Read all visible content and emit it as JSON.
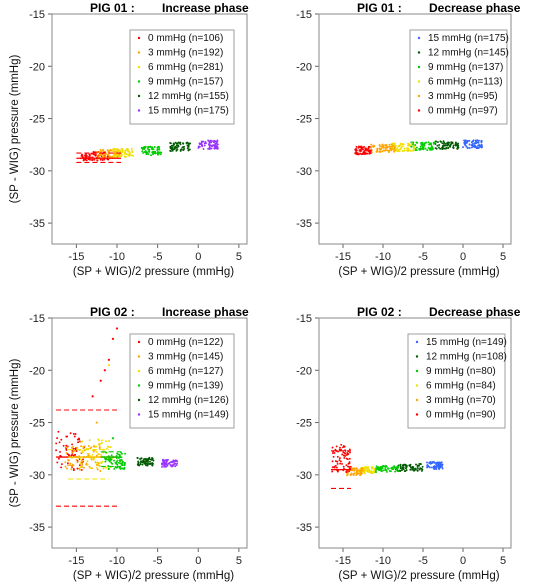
{
  "chart_data": [
    {
      "type": "scatter",
      "pig_label": "PIG 01 :",
      "title": "Increase phase",
      "xlabel": "(SP + WIG)/2 pressure (mmHg)",
      "ylabel": "(SP - WIG) pressure (mmHg)",
      "xlim": [
        -18,
        6
      ],
      "ylim": [
        -37,
        -15
      ],
      "xticks": [
        -15,
        -10,
        -5,
        0,
        5
      ],
      "yticks": [
        -15,
        -20,
        -25,
        -30,
        -35
      ],
      "grid": false,
      "legend_position": "top-right",
      "series": [
        {
          "name": "0 mmHg (n=106)",
          "color": "#ff0000",
          "x_range": [
            -14.5,
            -11
          ],
          "y_range": [
            -29.2,
            -28.0
          ]
        },
        {
          "name": "3 mmHg (n=192)",
          "color": "#ffa500",
          "x_range": [
            -12.5,
            -9.5
          ],
          "y_range": [
            -29.0,
            -27.8
          ]
        },
        {
          "name": "6 mmHg (n=281)",
          "color": "#f0e000",
          "x_range": [
            -10.5,
            -8
          ],
          "y_range": [
            -28.9,
            -27.7
          ]
        },
        {
          "name": "9 mmHg (n=157)",
          "color": "#00cc00",
          "x_range": [
            -7,
            -4.5
          ],
          "y_range": [
            -28.7,
            -27.5
          ]
        },
        {
          "name": "12 mmHg (n=155)",
          "color": "#005a00",
          "x_range": [
            -3.5,
            -1
          ],
          "y_range": [
            -28.3,
            -27.1
          ]
        },
        {
          "name": "15 mmHg (n=175)",
          "color": "#9933ff",
          "x_range": [
            0,
            2.5
          ],
          "y_range": [
            -28.1,
            -26.9
          ]
        }
      ],
      "reference_lines": {
        "color": "#ff0000",
        "x_range": [
          -15,
          -9.5
        ],
        "mean": -28.8,
        "limits": [
          -29.2,
          -28.3
        ]
      }
    },
    {
      "type": "scatter",
      "pig_label": "PIG 01 :",
      "title": "Decrease phase",
      "xlabel": "(SP + WIG)/2 pressure (mmHg)",
      "ylabel": "",
      "xlim": [
        -18,
        6
      ],
      "ylim": [
        -37,
        -15
      ],
      "xticks": [
        -15,
        -10,
        -5,
        0,
        5
      ],
      "yticks": [
        -15,
        -20,
        -25,
        -30,
        -35
      ],
      "grid": false,
      "legend_position": "top-right",
      "series": [
        {
          "name": "15 mmHg (n=175)",
          "color": "#3366ff",
          "x_range": [
            0,
            2.5
          ],
          "y_range": [
            -28.0,
            -26.9
          ]
        },
        {
          "name": "12 mmHg (n=145)",
          "color": "#005a00",
          "x_range": [
            -3.5,
            -0.5
          ],
          "y_range": [
            -28.1,
            -27.0
          ]
        },
        {
          "name": "9 mmHg (n=137)",
          "color": "#00cc00",
          "x_range": [
            -6.5,
            -3.5
          ],
          "y_range": [
            -28.2,
            -27.1
          ]
        },
        {
          "name": "6 mmHg (n=113)",
          "color": "#f0e000",
          "x_range": [
            -9,
            -6
          ],
          "y_range": [
            -28.3,
            -27.2
          ]
        },
        {
          "name": "3 mmHg (n=95)",
          "color": "#ffa500",
          "x_range": [
            -11.5,
            -8.5
          ],
          "y_range": [
            -28.4,
            -27.3
          ]
        },
        {
          "name": "0 mmHg (n=97)",
          "color": "#ff0000",
          "x_range": [
            -13.5,
            -11.5
          ],
          "y_range": [
            -28.6,
            -27.5
          ]
        }
      ]
    },
    {
      "type": "scatter",
      "pig_label": "PIG 02 :",
      "title": "Increase phase",
      "xlabel": "(SP + WIG)/2 pressure (mmHg)",
      "ylabel": "(SP - WIG) pressure (mmHg)",
      "xlim": [
        -18,
        6
      ],
      "ylim": [
        -37,
        -15
      ],
      "xticks": [
        -15,
        -10,
        -5,
        0,
        5
      ],
      "yticks": [
        -15,
        -20,
        -25,
        -30,
        -35
      ],
      "grid": false,
      "legend_position": "top-right",
      "series": [
        {
          "name": "0 mmHg (n=122)",
          "color": "#ff0000",
          "x_range": [
            -17.5,
            -14
          ],
          "y_range": [
            -30.5,
            -25.0
          ]
        },
        {
          "name": "3 mmHg (n=145)",
          "color": "#ffa500",
          "x_range": [
            -16.5,
            -12
          ],
          "y_range": [
            -30.2,
            -26.5
          ]
        },
        {
          "name": "6 mmHg (n=127)",
          "color": "#f0e000",
          "x_range": [
            -14.5,
            -10.5
          ],
          "y_range": [
            -30.0,
            -26.0
          ]
        },
        {
          "name": "9 mmHg (n=139)",
          "color": "#00cc00",
          "x_range": [
            -11.5,
            -9
          ],
          "y_range": [
            -29.8,
            -27.5
          ]
        },
        {
          "name": "12 mmHg (n=126)",
          "color": "#005a00",
          "x_range": [
            -7.5,
            -5.5
          ],
          "y_range": [
            -29.3,
            -28.2
          ]
        },
        {
          "name": "15 mmHg (n=149)",
          "color": "#9933ff",
          "x_range": [
            -4.5,
            -2.5
          ],
          "y_range": [
            -29.4,
            -28.4
          ]
        }
      ],
      "outliers": [
        {
          "x": -13.0,
          "y": -22.5,
          "color": "#ff0000"
        },
        {
          "x": -12.0,
          "y": -21.0,
          "color": "#ff0000"
        },
        {
          "x": -11.5,
          "y": -20.0,
          "color": "#ff0000"
        },
        {
          "x": -11.0,
          "y": -19.0,
          "color": "#ff0000"
        },
        {
          "x": -10.5,
          "y": -17.0,
          "color": "#ff0000"
        },
        {
          "x": -10.0,
          "y": -16.0,
          "color": "#ff0000"
        },
        {
          "x": -12.5,
          "y": -25.0,
          "color": "#ffa500"
        },
        {
          "x": -11.0,
          "y": -19.5,
          "color": "#f0e000"
        },
        {
          "x": -10.5,
          "y": -26.5,
          "color": "#00cc00"
        }
      ],
      "reference_lines": [
        {
          "color": "#ff0000",
          "x_range": [
            -17.5,
            -10
          ],
          "mean": -28.3,
          "limits": [
            -33.0,
            -23.8
          ]
        },
        {
          "color": "#f0e000",
          "x_range": [
            -16,
            -11
          ],
          "mean": -28.3,
          "limits": [
            -30.4,
            -27.6
          ]
        },
        {
          "color": "#00cc00",
          "x_range": [
            -12,
            -9.5
          ],
          "mean": -28.3,
          "limits": [
            -29.2,
            -27.8
          ]
        }
      ]
    },
    {
      "type": "scatter",
      "pig_label": "PIG 02 :",
      "title": "Decrease phase",
      "xlabel": "(SP + WIG)/2 pressure (mmHg)",
      "ylabel": "",
      "xlim": [
        -18,
        6
      ],
      "ylim": [
        -37,
        -15
      ],
      "xticks": [
        -15,
        -10,
        -5,
        0,
        5
      ],
      "yticks": [
        -15,
        -20,
        -25,
        -30,
        -35
      ],
      "grid": false,
      "legend_position": "top-right",
      "series": [
        {
          "name": "15 mmHg (n=149)",
          "color": "#3366ff",
          "x_range": [
            -4.5,
            -2.5
          ],
          "y_range": [
            -29.6,
            -28.6
          ]
        },
        {
          "name": "12 mmHg (n=108)",
          "color": "#005a00",
          "x_range": [
            -8.5,
            -5
          ],
          "y_range": [
            -29.8,
            -28.8
          ]
        },
        {
          "name": "9 mmHg (n=80)",
          "color": "#00cc00",
          "x_range": [
            -11,
            -8
          ],
          "y_range": [
            -29.9,
            -29.0
          ]
        },
        {
          "name": "6 mmHg (n=84)",
          "color": "#f0e000",
          "x_range": [
            -13,
            -11
          ],
          "y_range": [
            -30.0,
            -29.1
          ]
        },
        {
          "name": "3 mmHg (n=70)",
          "color": "#ffa500",
          "x_range": [
            -14.5,
            -12.5
          ],
          "y_range": [
            -30.2,
            -29.2
          ]
        },
        {
          "name": "0 mmHg (n=90)",
          "color": "#ff0000",
          "x_range": [
            -16.5,
            -14
          ],
          "y_range": [
            -30.4,
            -26.5
          ]
        }
      ],
      "reference_lines": {
        "color": "#ff0000",
        "x_range": [
          -16.5,
          -14
        ],
        "mean": -29.5,
        "limits": [
          -31.3,
          -27.7
        ]
      }
    }
  ]
}
